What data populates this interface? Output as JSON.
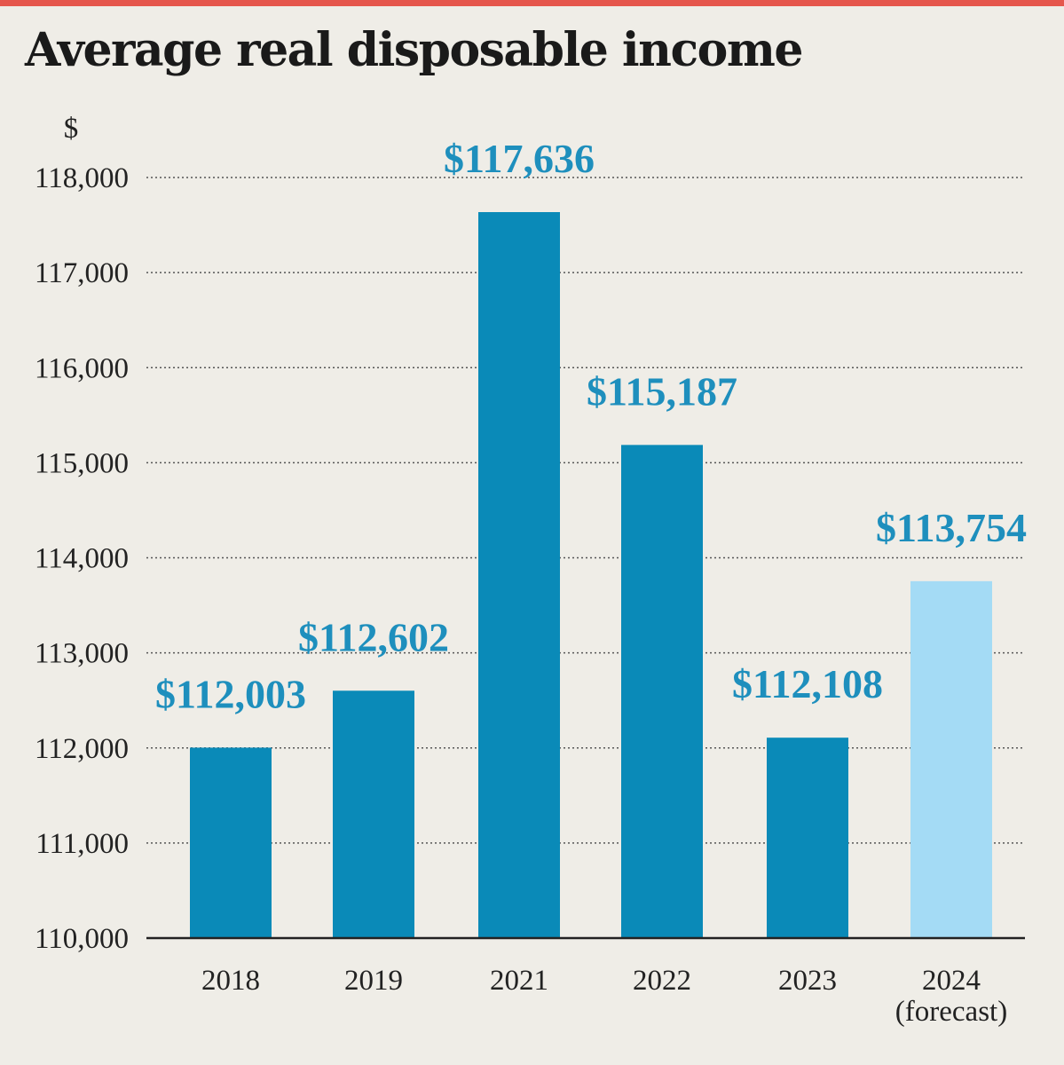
{
  "title": "Average real disposable income",
  "chart_data": {
    "type": "bar",
    "title": "Average real disposable income",
    "ylabel": "$",
    "xlabel": "",
    "categories": [
      "2018",
      "2019",
      "2021",
      "2022",
      "2023",
      "2024"
    ],
    "category_sublabels": [
      "",
      "",
      "",
      "",
      "",
      "(forecast)"
    ],
    "values": [
      112003,
      112602,
      117636,
      115187,
      112108,
      113754
    ],
    "data_labels": [
      "$112,003",
      "$112,602",
      "$117,636",
      "$115,187",
      "$112,108",
      "$113,754"
    ],
    "forecast": [
      false,
      false,
      false,
      false,
      false,
      true
    ],
    "ylim": [
      110000,
      118000
    ],
    "yticks": [
      110000,
      111000,
      112000,
      113000,
      114000,
      115000,
      116000,
      117000,
      118000
    ],
    "ytick_labels": [
      "110,000",
      "111,000",
      "112,000",
      "113,000",
      "114,000",
      "115,000",
      "116,000",
      "117,000",
      "118,000"
    ],
    "grid": "dotted horizontal",
    "colors": {
      "bar": "#0a8ab8",
      "forecast_bar": "#a4dbf5",
      "data_label": "#1e8fbd",
      "accent_rule": "#e5564c",
      "background": "#efede7"
    }
  }
}
